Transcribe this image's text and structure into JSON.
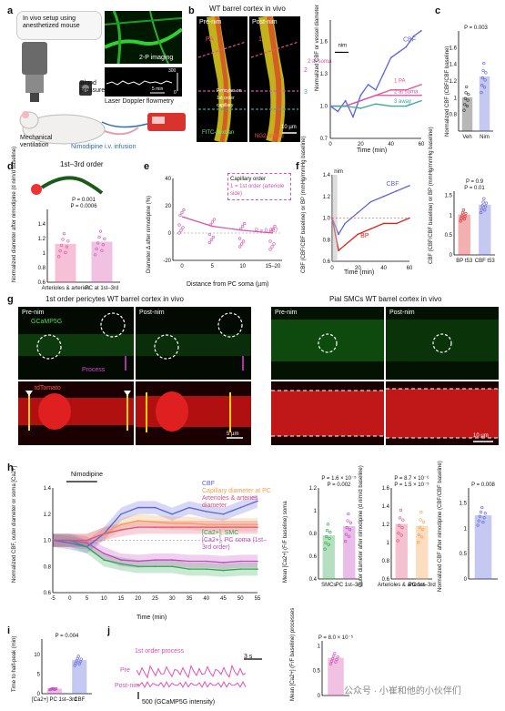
{
  "panel_letters": [
    "a",
    "b",
    "c",
    "d",
    "e",
    "f",
    "g",
    "h",
    "i",
    "j"
  ],
  "a": {
    "setup_text": "In vivo setup using anesthetized mouse",
    "imaging": "2-P imaging",
    "blood_pressure": "Blood pressure",
    "flowmetry": "Laser Doppler flowmetry",
    "ventilation": "Mechanical ventilation",
    "infusion": "Nimodipine i.v. infusion",
    "scale_time": "5 min",
    "scale_top": "300",
    "scale_bottom": "0"
  },
  "b": {
    "title": "WT barrel cortex in vivo",
    "pre": "Pre-nim",
    "post": "Post-nim",
    "pa": "PA",
    "one": "1",
    "two": "2",
    "three": "3",
    "pericytes_note": "Pericytes on 1st order capillary",
    "fitc": "FITC-dextran",
    "ng2": "NG2-dsRed",
    "scale": "10 µm",
    "ylabel": "Normalized CBF or vessel diameter",
    "xlabel": "Time (min)",
    "nim": "nim",
    "cbf": "CBF",
    "pa1": "1 PA",
    "soma2": "2 at soma",
    "away3": "3 away",
    "color_cbf": "#5b63d9",
    "color_pa": "#e8508f",
    "color_soma": "#d64fb2",
    "color_away": "#3aa8a0"
  },
  "c": {
    "p": "P = 0.003",
    "ylabel": "Normalized CBF (CBF/CBF baseline)",
    "cats": [
      "Veh",
      "Nim"
    ]
  },
  "d": {
    "title": "1st–3rd order",
    "p1": "P = 0.001",
    "p2": "P = 0.0006",
    "ylabel": "Normalized diameter after nimodipine (d nim/d baseline)",
    "cats": [
      "Arterioles & arteries",
      "PC at 1st–3rd"
    ]
  },
  "e": {
    "legend_title": "Capillary order",
    "legend_item": "1 = 1st order (arteriole side)",
    "p": "P = 0.007",
    "ylabel": "Diameter Δ after nimodipine (%)",
    "xlabel": "Distance from PC soma (µm)",
    "ticks": [
      "0",
      "5",
      "10",
      "15–20"
    ]
  },
  "f": {
    "nim": "nim",
    "cbf": "CBF",
    "bp": "BP",
    "ylabel": "CBF (CBF/CBF baseline) or BP (mmHg/mmHg baseline)",
    "xlabel": "Time (min)",
    "p1": "P = 0.9",
    "p2": "P = 0.01",
    "ylabel2": "CBF (CBF/CBF baseline) or BP (mmHg/mmHg baseline)",
    "cats": [
      "BP t53",
      "CBF t53"
    ]
  },
  "g": {
    "title_left": "1st order pericytes WT barrel cortex in vivo",
    "title_right": "Pial SMCs WT barrel cortex in vivo",
    "pre": "Pre-nim",
    "post": "Post-nim",
    "gcamp": "GCaMP5G",
    "process": "Process",
    "tdtomato": "tdTomato",
    "scale1": "5 µm",
    "scale2": "10 µm"
  },
  "h": {
    "nimodipine": "Nimodipine",
    "ylabel": "Normalized CBF, outer diameter or soma [Ca2+]",
    "xlabel": "Time (min)",
    "xticks": [
      "-5",
      "0",
      "5",
      "10",
      "15",
      "20",
      "25",
      "30",
      "35",
      "40",
      "45",
      "50",
      "55"
    ],
    "legend": [
      "CBF",
      "Capillary diameter at PC",
      "Arterioles & arteries diameter",
      "[Ca2+], SMC",
      "[Ca2+], PC soma (1st–3rd order)"
    ],
    "p_ca1": "P = 1.6 × 10⁻⁵",
    "p_ca2": "P = 0.002",
    "ylabel_ca": "Mean [Ca2+] (F/F baseline) soma",
    "cats_ca": [
      "SMCs",
      "PC 1st–3rd"
    ],
    "p_od1": "P = 8.7 × 10⁻⁶",
    "p_od2": "P = 1.5 × 10⁻⁵",
    "ylabel_od": "Outer diameter after nimodipine (d nim/d baseline)",
    "cats_od": [
      "Arterioles & arteries",
      "PC 1st–3rd"
    ],
    "p_cbf": "P = 0.008",
    "ylabel_cbf": "Normalized CBF after nimodipine (CBF/CBF baseline)"
  },
  "i": {
    "p": "P = 0.004",
    "ylabel": "Time to half-peak (min)",
    "cats": [
      "[Ca2+] PC 1st–3rd",
      "CBF"
    ]
  },
  "j": {
    "title": "1st order process",
    "pre": "Pre",
    "post": "Post-nim",
    "scale_t": "3 s",
    "scale_i": "500 (GCaMP5G intensity)",
    "p": "P = 8.0 × 10⁻⁵",
    "ylabel": "Mean [Ca2+] (F/F baseline) processes"
  },
  "watermark": "公众号 · 小崔和他的小伙伴们",
  "chart_data": [
    {
      "panel": "b",
      "type": "line",
      "xlabel": "Time (min)",
      "ylabel": "Normalized CBF or vessel diameter",
      "ylim": [
        0.7,
        1.8
      ],
      "xlim": [
        0,
        60
      ],
      "series": [
        {
          "name": "CBF",
          "x": [
            0,
            5,
            10,
            15,
            20,
            25,
            30,
            35,
            40,
            45,
            50,
            55,
            60
          ],
          "values": [
            1.0,
            0.95,
            1.05,
            0.9,
            1.1,
            1.2,
            1.15,
            1.3,
            1.45,
            1.5,
            1.55,
            1.65,
            1.7
          ]
        },
        {
          "name": "1 PA",
          "x": [
            0,
            10,
            20,
            30,
            40,
            50,
            60
          ],
          "values": [
            1.0,
            1.0,
            1.05,
            1.1,
            1.15,
            1.15,
            1.2
          ]
        },
        {
          "name": "2 at soma",
          "x": [
            0,
            10,
            20,
            30,
            40,
            50,
            60
          ],
          "values": [
            1.0,
            1.0,
            1.05,
            1.1,
            1.1,
            1.1,
            1.1
          ]
        },
        {
          "name": "3 away",
          "x": [
            0,
            10,
            20,
            30,
            40,
            50,
            60
          ],
          "values": [
            1.0,
            1.0,
            0.98,
            1.02,
            1.0,
            1.0,
            1.05
          ]
        }
      ]
    },
    {
      "panel": "c",
      "type": "bar",
      "categories": [
        "Veh",
        "Nim"
      ],
      "values": [
        1.0,
        1.25
      ],
      "ylim": [
        0.6,
        1.8
      ]
    },
    {
      "panel": "d",
      "type": "bar",
      "categories": [
        "Arterioles & arteries",
        "PC at 1st–3rd"
      ],
      "values": [
        1.12,
        1.15
      ],
      "ylim": [
        0.6,
        1.6
      ]
    },
    {
      "panel": "e",
      "type": "scatter",
      "categories": [
        "0",
        "5",
        "10",
        "15–20"
      ],
      "values": [
        12,
        5,
        2,
        0
      ],
      "ylim": [
        -20,
        40
      ]
    },
    {
      "panel": "f",
      "type": "line",
      "xlim": [
        0,
        60
      ],
      "ylim": [
        0.6,
        1.4
      ],
      "series": [
        {
          "name": "CBF",
          "x": [
            0,
            5,
            10,
            20,
            30,
            40,
            50,
            60
          ],
          "values": [
            1.0,
            0.85,
            0.95,
            1.05,
            1.15,
            1.2,
            1.25,
            1.3
          ]
        },
        {
          "name": "BP",
          "x": [
            0,
            5,
            10,
            20,
            30,
            40,
            50,
            60
          ],
          "values": [
            1.0,
            0.7,
            0.75,
            0.85,
            0.9,
            0.95,
            0.95,
            1.0
          ]
        }
      ]
    },
    {
      "panel": "f-bar",
      "type": "bar",
      "categories": [
        "BP t53",
        "CBF t53"
      ],
      "values": [
        1.0,
        1.25
      ],
      "ylim": [
        0,
        1.6
      ]
    },
    {
      "panel": "h",
      "type": "line",
      "xlim": [
        -5,
        55
      ],
      "ylim": [
        0.6,
        1.4
      ],
      "series": [
        {
          "name": "CBF",
          "x": [
            -5,
            0,
            5,
            10,
            15,
            20,
            25,
            30,
            35,
            40,
            45,
            50,
            55
          ],
          "values": [
            1.0,
            0.98,
            0.95,
            1.05,
            1.2,
            1.25,
            1.25,
            1.2,
            1.25,
            1.22,
            1.2,
            1.25,
            1.3
          ]
        },
        {
          "name": "Capillary diameter at PC",
          "x": [
            -5,
            0,
            5,
            10,
            15,
            20,
            25,
            30,
            35,
            40,
            45,
            50,
            55
          ],
          "values": [
            1.0,
            1.0,
            1.0,
            1.05,
            1.12,
            1.15,
            1.14,
            1.13,
            1.13,
            1.12,
            1.12,
            1.12,
            1.12
          ]
        },
        {
          "name": "Arterioles & arteries diameter",
          "x": [
            -5,
            0,
            5,
            10,
            15,
            20,
            25,
            30,
            35,
            40,
            45,
            50,
            55
          ],
          "values": [
            1.0,
            1.0,
            1.0,
            1.05,
            1.08,
            1.1,
            1.1,
            1.1,
            1.1,
            1.1,
            1.1,
            1.1,
            1.1
          ]
        },
        {
          "name": "[Ca2+], SMC",
          "x": [
            -5,
            0,
            5,
            10,
            15,
            20,
            25,
            30,
            35,
            40,
            45,
            50,
            55
          ],
          "values": [
            1.0,
            1.0,
            0.95,
            0.85,
            0.82,
            0.8,
            0.8,
            0.8,
            0.78,
            0.78,
            0.77,
            0.78,
            0.78
          ]
        },
        {
          "name": "[Ca2+], PC soma (1st–3rd order)",
          "x": [
            -5,
            0,
            5,
            10,
            15,
            20,
            25,
            30,
            35,
            40,
            45,
            50,
            55
          ],
          "values": [
            1.0,
            1.0,
            0.98,
            0.9,
            0.85,
            0.84,
            0.85,
            0.85,
            0.84,
            0.84,
            0.83,
            0.84,
            0.84
          ]
        }
      ]
    },
    {
      "panel": "h-ca",
      "type": "bar",
      "categories": [
        "SMCs",
        "PC 1st–3rd"
      ],
      "values": [
        0.78,
        0.86
      ],
      "ylim": [
        0.4,
        1.2
      ]
    },
    {
      "panel": "h-od",
      "type": "bar",
      "categories": [
        "Arterioles & arteries",
        "PC 1st–3rd"
      ],
      "values": [
        1.2,
        1.18
      ],
      "ylim": [
        0.6,
        1.6
      ]
    },
    {
      "panel": "h-cbf",
      "type": "bar",
      "categories": [
        ""
      ],
      "values": [
        1.25
      ],
      "ylim": [
        0,
        1.8
      ]
    },
    {
      "panel": "i",
      "type": "bar",
      "categories": [
        "[Ca2+] PC 1st–3rd",
        "CBF"
      ],
      "values": [
        1.2,
        8.5
      ],
      "ylim": [
        0,
        14
      ]
    },
    {
      "panel": "j",
      "type": "bar",
      "categories": [
        ""
      ],
      "values": [
        0.75
      ],
      "ylim": [
        0,
        1.1
      ]
    }
  ]
}
